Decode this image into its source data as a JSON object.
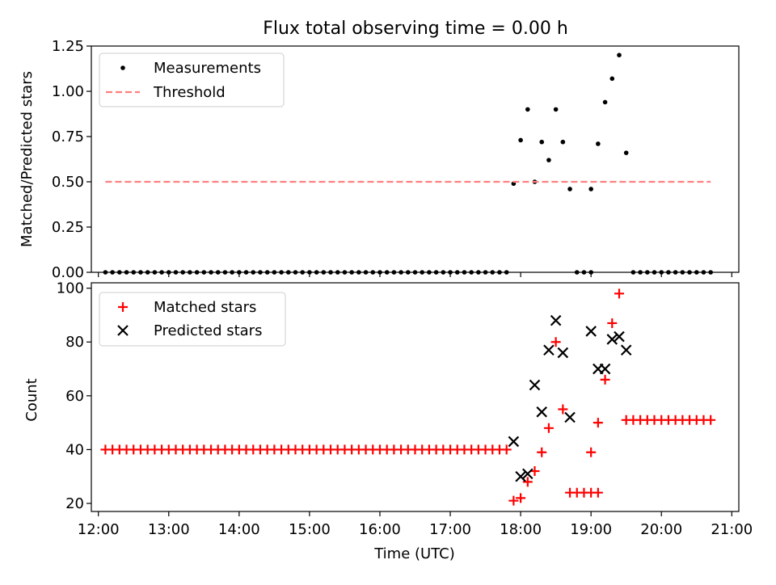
{
  "chart_data": [
    {
      "type": "scatter",
      "title": "Flux total observing time = 0.00 h",
      "xlabel": "",
      "ylabel": "Matched/Predicted stars",
      "xlim": [
        "11:54",
        "21:06"
      ],
      "ylim": [
        0,
        1.25
      ],
      "x_ticks": [
        "12:00",
        "13:00",
        "14:00",
        "15:00",
        "16:00",
        "17:00",
        "18:00",
        "19:00",
        "20:00",
        "21:00"
      ],
      "y_ticks": [
        "0.00",
        "0.25",
        "0.50",
        "0.75",
        "1.00",
        "1.25"
      ],
      "legend_position": "upper-left",
      "legend": [
        "Measurements",
        "Threshold"
      ],
      "series": [
        {
          "name": "Measurements",
          "marker": "dot",
          "color": "#000000",
          "points": [
            [
              "12:06",
              0
            ],
            [
              "12:12",
              0
            ],
            [
              "12:18",
              0
            ],
            [
              "12:24",
              0
            ],
            [
              "12:30",
              0
            ],
            [
              "12:36",
              0
            ],
            [
              "12:42",
              0
            ],
            [
              "12:48",
              0
            ],
            [
              "12:54",
              0
            ],
            [
              "13:00",
              0
            ],
            [
              "13:06",
              0
            ],
            [
              "13:12",
              0
            ],
            [
              "13:18",
              0
            ],
            [
              "13:24",
              0
            ],
            [
              "13:30",
              0
            ],
            [
              "13:36",
              0
            ],
            [
              "13:42",
              0
            ],
            [
              "13:48",
              0
            ],
            [
              "13:54",
              0
            ],
            [
              "14:00",
              0
            ],
            [
              "14:06",
              0
            ],
            [
              "14:12",
              0
            ],
            [
              "14:18",
              0
            ],
            [
              "14:24",
              0
            ],
            [
              "14:30",
              0
            ],
            [
              "14:36",
              0
            ],
            [
              "14:42",
              0
            ],
            [
              "14:48",
              0
            ],
            [
              "14:54",
              0
            ],
            [
              "15:00",
              0
            ],
            [
              "15:06",
              0
            ],
            [
              "15:12",
              0
            ],
            [
              "15:18",
              0
            ],
            [
              "15:24",
              0
            ],
            [
              "15:30",
              0
            ],
            [
              "15:36",
              0
            ],
            [
              "15:42",
              0
            ],
            [
              "15:48",
              0
            ],
            [
              "15:54",
              0
            ],
            [
              "16:00",
              0
            ],
            [
              "16:06",
              0
            ],
            [
              "16:12",
              0
            ],
            [
              "16:18",
              0
            ],
            [
              "16:24",
              0
            ],
            [
              "16:30",
              0
            ],
            [
              "16:36",
              0
            ],
            [
              "16:42",
              0
            ],
            [
              "16:48",
              0
            ],
            [
              "16:54",
              0
            ],
            [
              "17:00",
              0
            ],
            [
              "17:06",
              0
            ],
            [
              "17:12",
              0
            ],
            [
              "17:18",
              0
            ],
            [
              "17:24",
              0
            ],
            [
              "17:30",
              0
            ],
            [
              "17:36",
              0
            ],
            [
              "17:42",
              0
            ],
            [
              "17:48",
              0
            ],
            [
              "17:54",
              0.49
            ],
            [
              "18:00",
              0.73
            ],
            [
              "18:06",
              0.9
            ],
            [
              "18:12",
              0.5
            ],
            [
              "18:18",
              0.72
            ],
            [
              "18:24",
              0.62
            ],
            [
              "18:30",
              0.9
            ],
            [
              "18:36",
              0.72
            ],
            [
              "18:42",
              0.46
            ],
            [
              "18:48",
              0
            ],
            [
              "18:54",
              0
            ],
            [
              "19:00",
              0
            ],
            [
              "19:00",
              0.46
            ],
            [
              "19:06",
              0.71
            ],
            [
              "19:12",
              0.94
            ],
            [
              "19:18",
              1.07
            ],
            [
              "19:24",
              1.2
            ],
            [
              "19:30",
              0.66
            ],
            [
              "19:36",
              0
            ],
            [
              "19:42",
              0
            ],
            [
              "19:48",
              0
            ],
            [
              "19:54",
              0
            ],
            [
              "20:00",
              0
            ],
            [
              "20:06",
              0
            ],
            [
              "20:12",
              0
            ],
            [
              "20:18",
              0
            ],
            [
              "20:24",
              0
            ],
            [
              "20:30",
              0
            ],
            [
              "20:36",
              0
            ],
            [
              "20:42",
              0
            ]
          ]
        },
        {
          "name": "Threshold",
          "marker": "dashed-line",
          "color": "#ff7f7f",
          "points": [
            [
              "12:06",
              0.5
            ],
            [
              "20:42",
              0.5
            ]
          ]
        }
      ]
    },
    {
      "type": "scatter",
      "title": "",
      "xlabel": "Time (UTC)",
      "ylabel": "Count",
      "xlim": [
        "11:54",
        "21:06"
      ],
      "ylim": [
        17,
        102
      ],
      "x_ticks": [
        "12:00",
        "13:00",
        "14:00",
        "15:00",
        "16:00",
        "17:00",
        "18:00",
        "19:00",
        "20:00",
        "21:00"
      ],
      "y_ticks": [
        "20",
        "40",
        "60",
        "80",
        "100"
      ],
      "legend_position": "upper-left",
      "legend": [
        "Matched stars",
        "Predicted stars"
      ],
      "series": [
        {
          "name": "Matched stars",
          "marker": "plus",
          "color": "#ff0000",
          "points": [
            [
              "12:06",
              40
            ],
            [
              "12:12",
              40
            ],
            [
              "12:18",
              40
            ],
            [
              "12:24",
              40
            ],
            [
              "12:30",
              40
            ],
            [
              "12:36",
              40
            ],
            [
              "12:42",
              40
            ],
            [
              "12:48",
              40
            ],
            [
              "12:54",
              40
            ],
            [
              "13:00",
              40
            ],
            [
              "13:06",
              40
            ],
            [
              "13:12",
              40
            ],
            [
              "13:18",
              40
            ],
            [
              "13:24",
              40
            ],
            [
              "13:30",
              40
            ],
            [
              "13:36",
              40
            ],
            [
              "13:42",
              40
            ],
            [
              "13:48",
              40
            ],
            [
              "13:54",
              40
            ],
            [
              "14:00",
              40
            ],
            [
              "14:06",
              40
            ],
            [
              "14:12",
              40
            ],
            [
              "14:18",
              40
            ],
            [
              "14:24",
              40
            ],
            [
              "14:30",
              40
            ],
            [
              "14:36",
              40
            ],
            [
              "14:42",
              40
            ],
            [
              "14:48",
              40
            ],
            [
              "14:54",
              40
            ],
            [
              "15:00",
              40
            ],
            [
              "15:06",
              40
            ],
            [
              "15:12",
              40
            ],
            [
              "15:18",
              40
            ],
            [
              "15:24",
              40
            ],
            [
              "15:30",
              40
            ],
            [
              "15:36",
              40
            ],
            [
              "15:42",
              40
            ],
            [
              "15:48",
              40
            ],
            [
              "15:54",
              40
            ],
            [
              "16:00",
              40
            ],
            [
              "16:06",
              40
            ],
            [
              "16:12",
              40
            ],
            [
              "16:18",
              40
            ],
            [
              "16:24",
              40
            ],
            [
              "16:30",
              40
            ],
            [
              "16:36",
              40
            ],
            [
              "16:42",
              40
            ],
            [
              "16:48",
              40
            ],
            [
              "16:54",
              40
            ],
            [
              "17:00",
              40
            ],
            [
              "17:06",
              40
            ],
            [
              "17:12",
              40
            ],
            [
              "17:18",
              40
            ],
            [
              "17:24",
              40
            ],
            [
              "17:30",
              40
            ],
            [
              "17:36",
              40
            ],
            [
              "17:42",
              40
            ],
            [
              "17:48",
              40
            ],
            [
              "17:54",
              21
            ],
            [
              "18:00",
              22
            ],
            [
              "18:06",
              28
            ],
            [
              "18:12",
              32
            ],
            [
              "18:18",
              39
            ],
            [
              "18:24",
              48
            ],
            [
              "18:30",
              80
            ],
            [
              "18:36",
              55
            ],
            [
              "18:42",
              24
            ],
            [
              "18:48",
              24
            ],
            [
              "18:54",
              24
            ],
            [
              "19:00",
              24
            ],
            [
              "19:06",
              24
            ],
            [
              "19:00",
              39
            ],
            [
              "19:06",
              50
            ],
            [
              "19:12",
              66
            ],
            [
              "19:18",
              87
            ],
            [
              "19:24",
              98
            ],
            [
              "19:30",
              51
            ],
            [
              "19:36",
              51
            ],
            [
              "19:42",
              51
            ],
            [
              "19:48",
              51
            ],
            [
              "19:54",
              51
            ],
            [
              "20:00",
              51
            ],
            [
              "20:06",
              51
            ],
            [
              "20:12",
              51
            ],
            [
              "20:18",
              51
            ],
            [
              "20:24",
              51
            ],
            [
              "20:30",
              51
            ],
            [
              "20:36",
              51
            ],
            [
              "20:42",
              51
            ]
          ]
        },
        {
          "name": "Predicted stars",
          "marker": "x",
          "color": "#000000",
          "points": [
            [
              "17:54",
              43
            ],
            [
              "18:00",
              30
            ],
            [
              "18:06",
              31
            ],
            [
              "18:12",
              64
            ],
            [
              "18:18",
              54
            ],
            [
              "18:24",
              77
            ],
            [
              "18:30",
              88
            ],
            [
              "18:36",
              76
            ],
            [
              "18:42",
              52
            ],
            [
              "19:00",
              84
            ],
            [
              "19:06",
              70
            ],
            [
              "19:12",
              70
            ],
            [
              "19:18",
              81
            ],
            [
              "19:24",
              82
            ],
            [
              "19:30",
              77
            ]
          ]
        }
      ]
    }
  ]
}
